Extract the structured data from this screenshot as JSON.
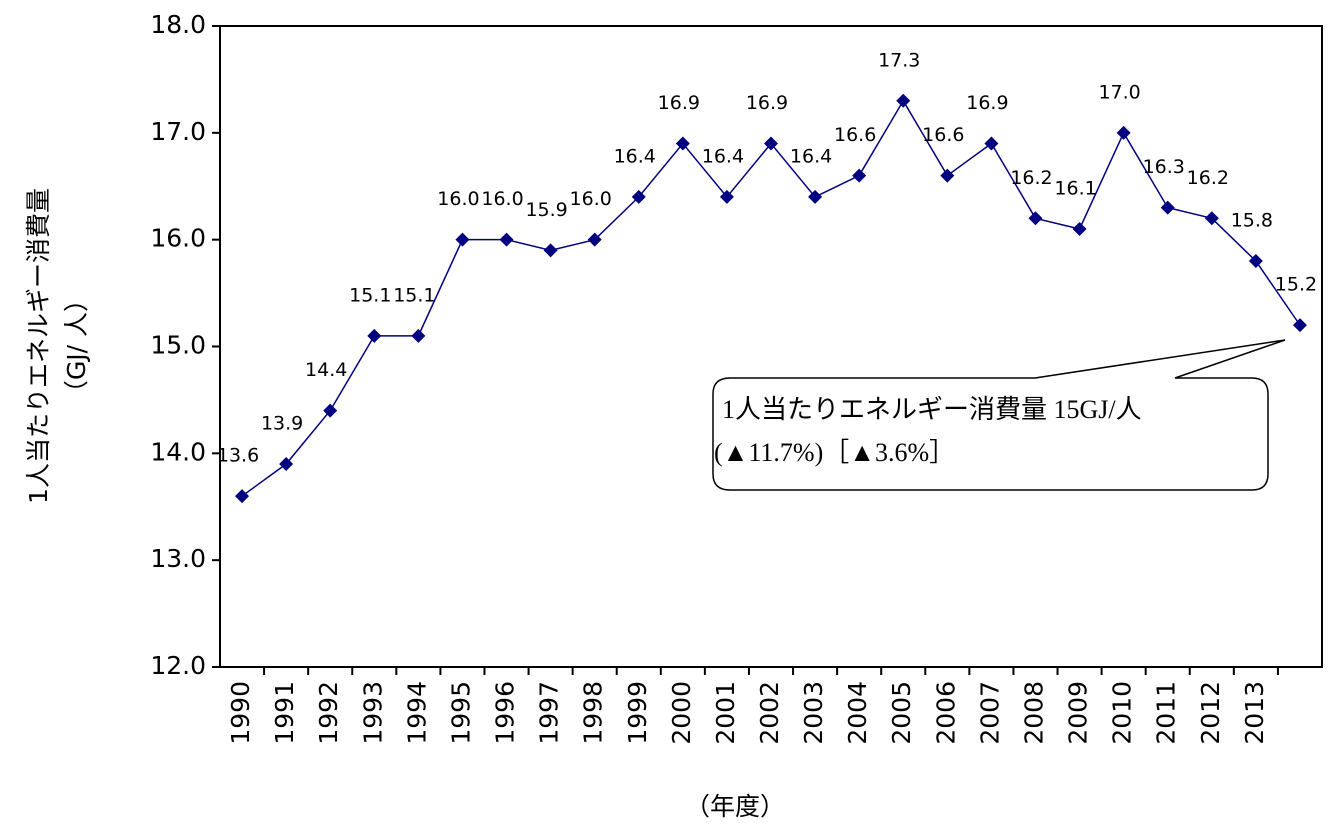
{
  "chart_data": {
    "type": "line",
    "y_label_lines": [
      "1人当たりエネルギー消費量",
      "（GJ/ 人）"
    ],
    "x_label": "（年度）",
    "categories": [
      "1990",
      "1991",
      "1992",
      "1993",
      "1994",
      "1995",
      "1996",
      "1997",
      "1998",
      "1999",
      "2000",
      "2001",
      "2002",
      "2003",
      "2004",
      "2005",
      "2006",
      "2007",
      "2008",
      "2009",
      "2010",
      "2011",
      "2012",
      "2013",
      null
    ],
    "series": [
      {
        "color": "#000080",
        "values": [
          13.6,
          13.9,
          14.4,
          15.1,
          15.1,
          16.0,
          16.0,
          15.9,
          16.0,
          16.4,
          16.9,
          16.4,
          16.9,
          16.4,
          16.6,
          17.3,
          16.6,
          16.9,
          16.2,
          16.1,
          17.0,
          16.3,
          16.2,
          15.8,
          15.2
        ],
        "value_labels": [
          "13.6",
          "13.9",
          "14.4",
          "15.1",
          "15.1",
          "16.0",
          "16.0",
          "15.9",
          "16.0",
          "16.4",
          "16.9",
          "16.4",
          "16.9",
          "16.4",
          "16.6",
          "17.3",
          "16.6",
          "16.9",
          "16.2",
          "16.1",
          "17.0",
          "16.3",
          "16.2",
          "15.8",
          "15.2"
        ]
      }
    ],
    "ylim": [
      12,
      18
    ],
    "yticks": [
      {
        "value": 12,
        "label": "12.0"
      },
      {
        "value": 13,
        "label": "13.0"
      },
      {
        "value": 14,
        "label": "14.0"
      },
      {
        "value": 15,
        "label": "15.0"
      },
      {
        "value": 16,
        "label": "16.0"
      },
      {
        "value": 17,
        "label": "17.0"
      },
      {
        "value": 18,
        "label": "18.0"
      }
    ],
    "annotation_lines": [
      "1人当たりエネルギー消費量  15GJ/人",
      "(▲11.7%)［▲3.6%］"
    ]
  }
}
